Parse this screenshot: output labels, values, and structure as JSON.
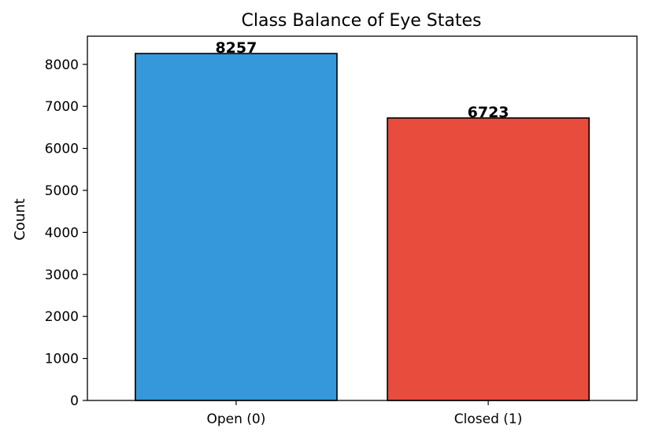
{
  "chart_data": {
    "type": "bar",
    "title": "Class Balance of Eye States",
    "xlabel": "",
    "ylabel": "Count",
    "categories": [
      "Open (0)",
      "Closed (1)"
    ],
    "values": [
      8257,
      6723
    ],
    "data_labels": [
      "8257",
      "6723"
    ],
    "colors": [
      "#3498db",
      "#e74c3c"
    ],
    "edge_color": "#000000",
    "ylim": [
      0,
      8670
    ],
    "yticks": [
      0,
      1000,
      2000,
      3000,
      4000,
      5000,
      6000,
      7000,
      8000
    ],
    "ytick_labels": [
      "0",
      "1000",
      "2000",
      "3000",
      "4000",
      "5000",
      "6000",
      "7000",
      "8000"
    ],
    "grid": false,
    "legend": "none"
  }
}
